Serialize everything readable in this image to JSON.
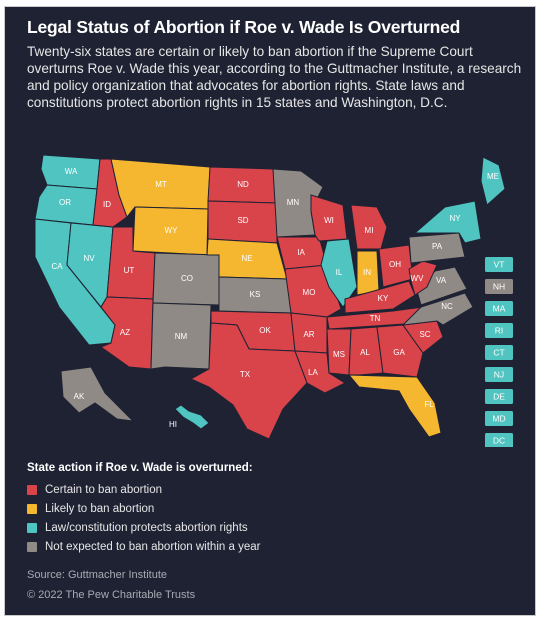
{
  "title": "Legal Status of Abortion if Roe v. Wade Is Overturned",
  "subtitle": "Twenty-six states are certain or likely to ban abortion if the Supreme Court overturns Roe v. Wade this year, according to the Guttmacher Institute, a research and policy organization that advocates for abortion rights. State laws and constitutions protect abortion rights in 15 states and Washington, D.C.",
  "colors": {
    "background": "#1f2233",
    "certain": "#d9434a",
    "likely": "#f5b630",
    "protects": "#4fc4c0",
    "not_expected": "#8f8a86"
  },
  "legend": {
    "title": "State action if Roe v. Wade is overturned:",
    "items": [
      {
        "label": "Certain to ban abortion",
        "color": "#d9434a"
      },
      {
        "label": "Likely to ban abortion",
        "color": "#f5b630"
      },
      {
        "label": "Law/constitution protects abortion rights",
        "color": "#4fc4c0"
      },
      {
        "label": "Not expected to ban abortion within a year",
        "color": "#8f8a86"
      }
    ]
  },
  "states": {
    "WA": "protects",
    "OR": "protects",
    "CA": "protects",
    "NV": "protects",
    "ID": "certain",
    "MT": "likely",
    "WY": "likely",
    "UT": "certain",
    "AZ": "certain",
    "CO": "not_expected",
    "NM": "not_expected",
    "ND": "certain",
    "SD": "certain",
    "NE": "likely",
    "KS": "not_expected",
    "OK": "certain",
    "TX": "certain",
    "MN": "not_expected",
    "IA": "certain",
    "MO": "certain",
    "AR": "certain",
    "LA": "certain",
    "WI": "certain",
    "IL": "protects",
    "MI": "certain",
    "IN": "likely",
    "OH": "certain",
    "KY": "certain",
    "TN": "certain",
    "MS": "certain",
    "AL": "certain",
    "GA": "certain",
    "FL": "likely",
    "SC": "certain",
    "NC": "not_expected",
    "VA": "not_expected",
    "WV": "certain",
    "PA": "not_expected",
    "NY": "protects",
    "ME": "protects",
    "AK": "not_expected",
    "HI": "protects"
  },
  "small_states": [
    {
      "label": "VT",
      "status": "protects"
    },
    {
      "label": "NH",
      "status": "not_expected"
    },
    {
      "label": "MA",
      "status": "protects"
    },
    {
      "label": "RI",
      "status": "protects"
    },
    {
      "label": "CT",
      "status": "protects"
    },
    {
      "label": "NJ",
      "status": "protects"
    },
    {
      "label": "DE",
      "status": "protects"
    },
    {
      "label": "MD",
      "status": "protects"
    },
    {
      "label": "DC",
      "status": "protects"
    }
  ],
  "source": "Source: Guttmacher Institute",
  "copyright": "© 2022 The Pew Charitable Trusts"
}
